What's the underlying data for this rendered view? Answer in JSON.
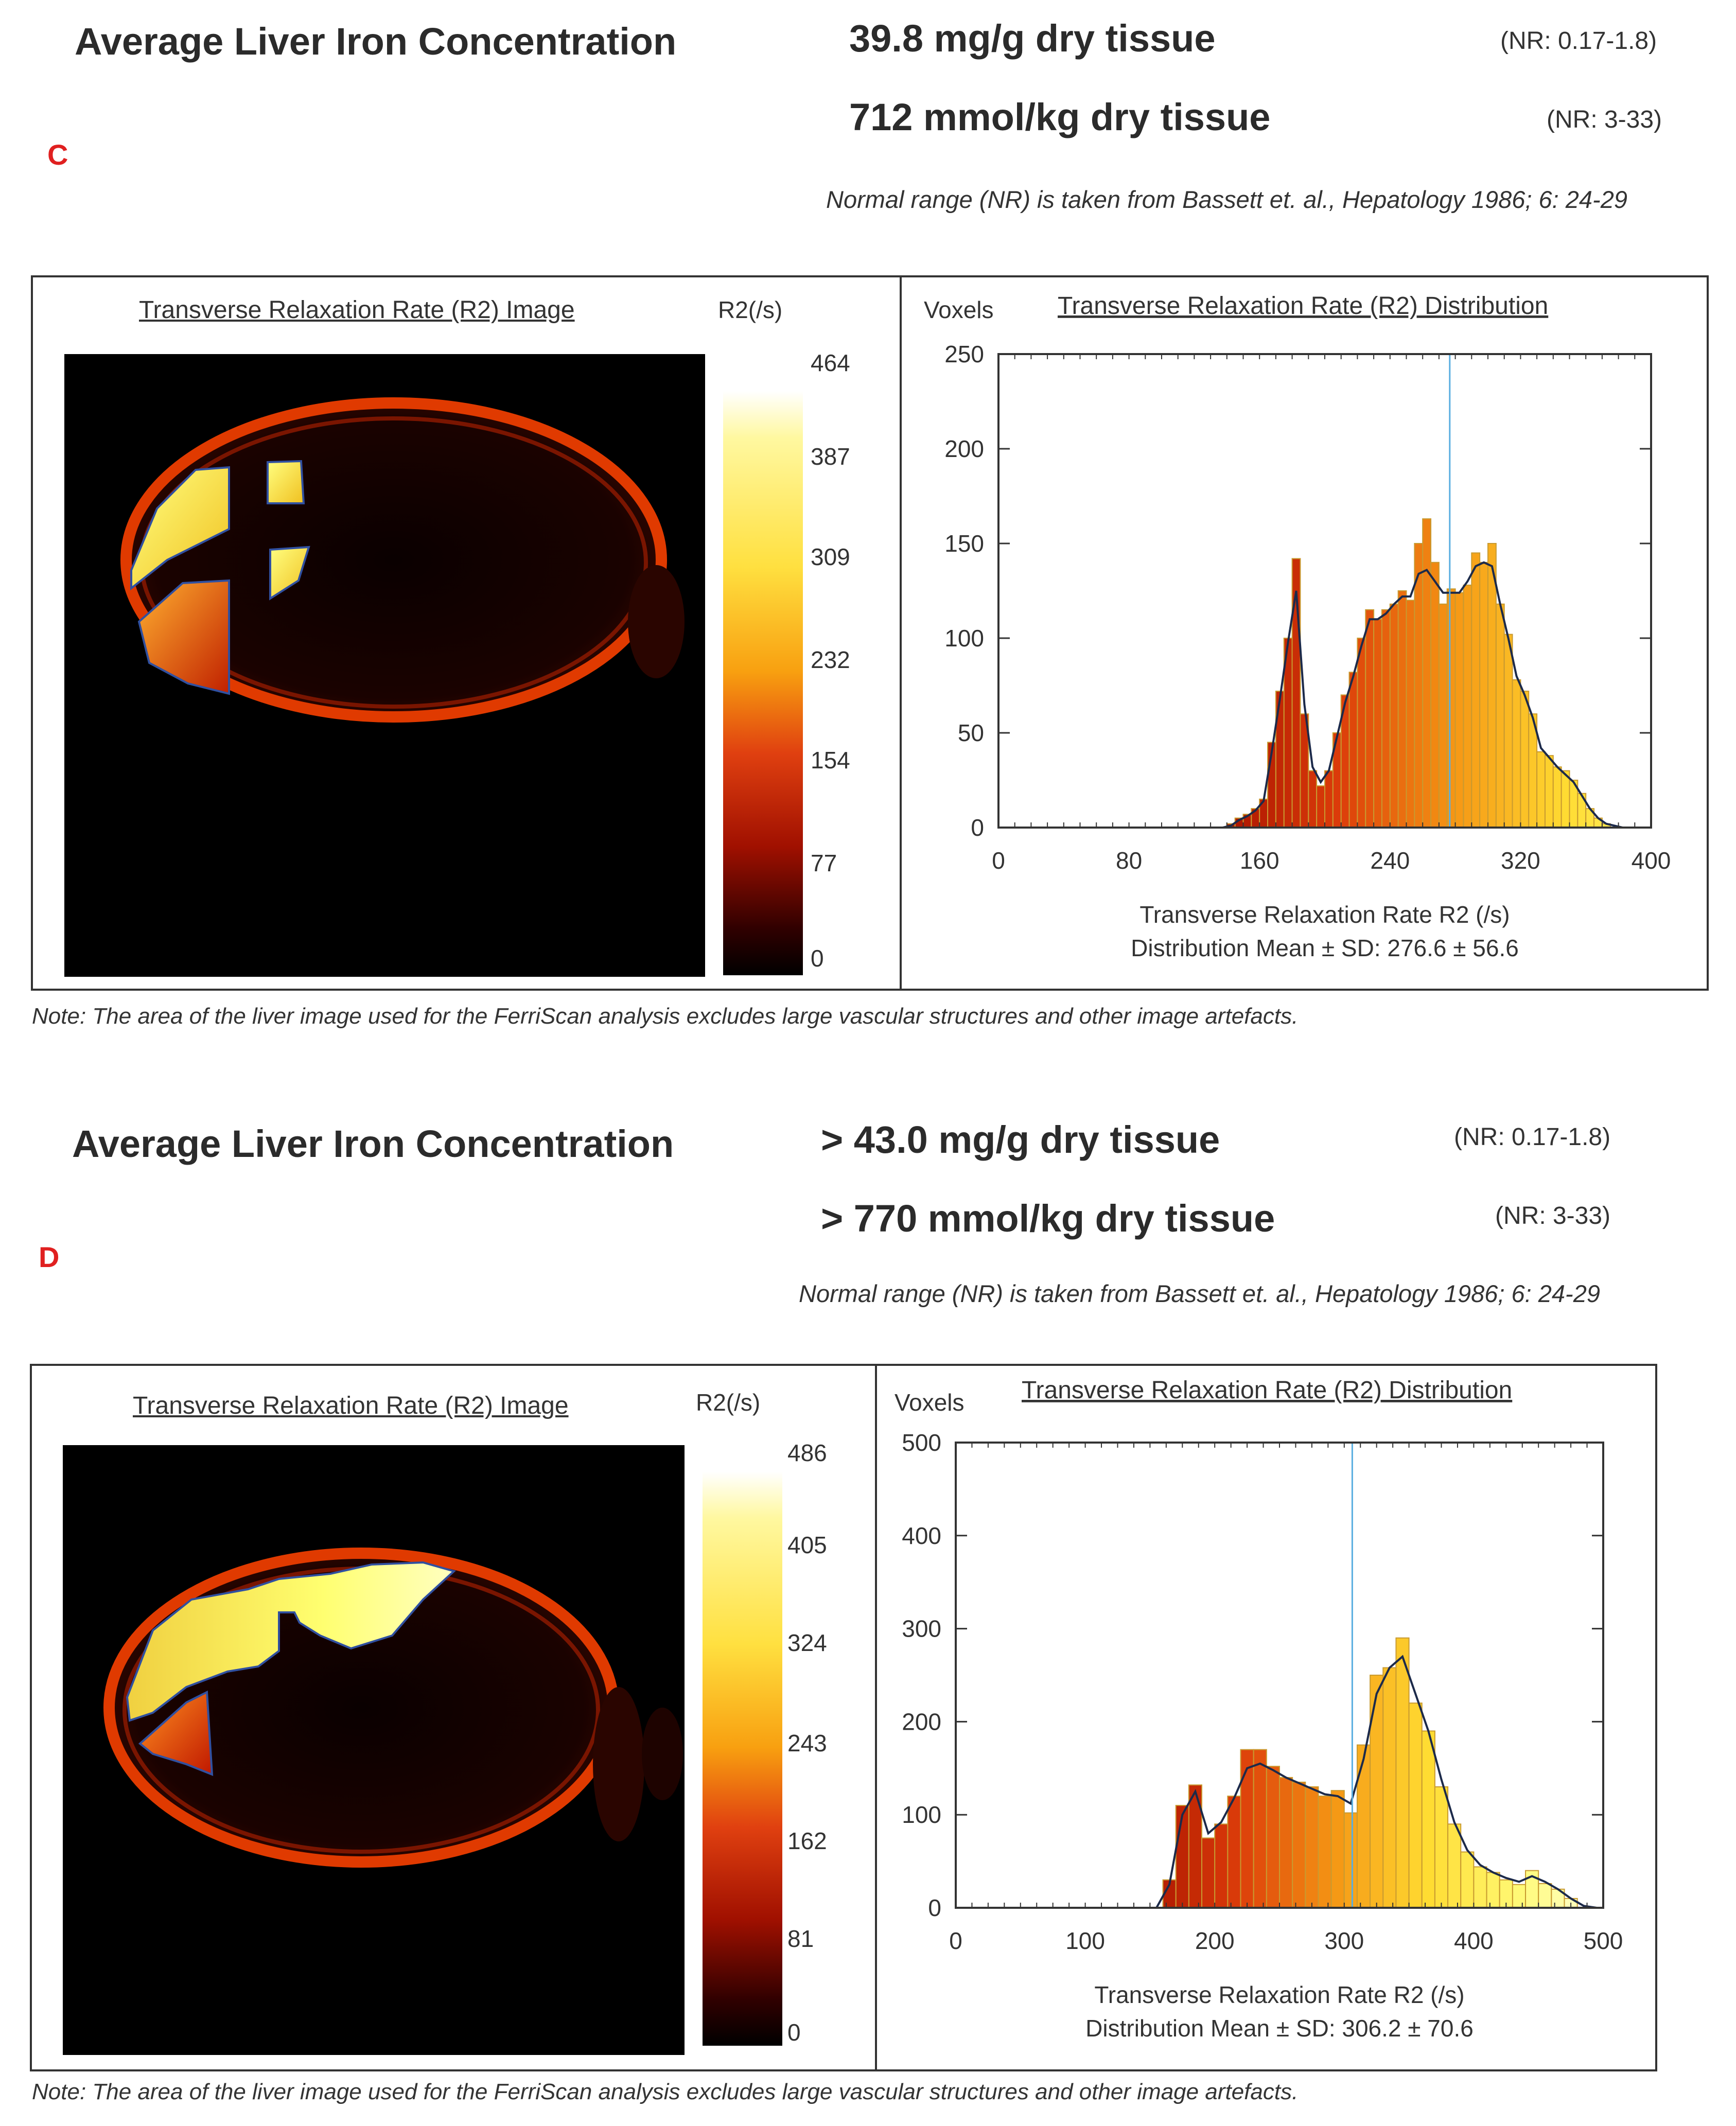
{
  "reports": [
    {
      "letter": "C",
      "title": "Average Liver Iron Concentration",
      "value1": "39.8   mg/g dry tissue",
      "nr1": "(NR: 0.17-1.8)",
      "value2": "712   mmol/kg dry tissue",
      "nr2": "(NR: 3-33)",
      "reference": "Normal range (NR) is taken from Bassett et. al., Hepatology 1986; 6: 24-29",
      "image_title": "Transverse Relaxation Rate (R2) Image",
      "colorbar_label": "R2(/s)",
      "colorbar_ticks": [
        "464",
        "387",
        "309",
        "232",
        "154",
        "77",
        "0"
      ],
      "voxels_label": "Voxels",
      "note": "Note: The area of the liver image used for the FerriScan analysis excludes large vascular structures and other image artefacts."
    },
    {
      "letter": "D",
      "title": "Average Liver Iron Concentration",
      "value1": "> 43.0 mg/g dry tissue",
      "nr1": "(NR: 0.17-1.8)",
      "value2": "> 770 mmol/kg dry tissue",
      "nr2": "(NR: 3-33)",
      "reference": "Normal range (NR) is taken from Bassett et. al., Hepatology 1986; 6: 24-29",
      "image_title": "Transverse Relaxation Rate (R2) Image",
      "colorbar_label": "R2(/s)",
      "colorbar_ticks": [
        "486",
        "405",
        "324",
        "243",
        "162",
        "81",
        "0"
      ],
      "voxels_label": "Voxels",
      "note": "Note: The area of the liver image used for the FerriScan analysis excludes large vascular structures and other image artefacts."
    }
  ],
  "chart_data": [
    {
      "type": "bar",
      "title": "Transverse Relaxation Rate (R2) Distribution",
      "xlabel": "Transverse Relaxation Rate R2 (/s)",
      "ylabel": "Voxels",
      "summary": "Distribution Mean ± SD: 276.6 ± 56.6",
      "xlim": [
        0,
        400
      ],
      "ylim": [
        0,
        250
      ],
      "xticks": [
        0,
        80,
        160,
        240,
        320,
        400
      ],
      "yticks": [
        0,
        50,
        100,
        150,
        200,
        250
      ],
      "mean_line": 276.6,
      "bin_width": 5,
      "bins_start": [
        0,
        5,
        10,
        15,
        20,
        25,
        30,
        35,
        40,
        45,
        50,
        55,
        60,
        65,
        70,
        75,
        80,
        85,
        90,
        95,
        100,
        105,
        110,
        115,
        120,
        125,
        130,
        135,
        140,
        145,
        150,
        155,
        160,
        165,
        170,
        175,
        180,
        185,
        190,
        195,
        200,
        205,
        210,
        215,
        220,
        225,
        230,
        235,
        240,
        245,
        250,
        255,
        260,
        265,
        270,
        275,
        280,
        285,
        290,
        295,
        300,
        305,
        310,
        315,
        320,
        325,
        330,
        335,
        340,
        345,
        350,
        355,
        360,
        365,
        370,
        375,
        380,
        385,
        390,
        395
      ],
      "values": [
        0,
        0,
        0,
        0,
        0,
        0,
        0,
        0,
        0,
        0,
        0,
        0,
        0,
        0,
        0,
        0,
        0,
        0,
        0,
        0,
        0,
        0,
        0,
        0,
        0,
        0,
        0,
        0,
        2,
        5,
        7,
        10,
        15,
        45,
        72,
        100,
        142,
        60,
        30,
        22,
        30,
        50,
        70,
        82,
        100,
        115,
        110,
        115,
        118,
        125,
        120,
        150,
        163,
        140,
        118,
        126,
        124,
        128,
        145,
        140,
        150,
        118,
        102,
        78,
        72,
        60,
        40,
        38,
        32,
        30,
        25,
        18,
        10,
        5,
        2,
        0,
        0,
        0,
        0,
        0
      ],
      "smooth": [
        0,
        0,
        0,
        0,
        0,
        0,
        0,
        0,
        0,
        0,
        0,
        0,
        0,
        0,
        0,
        0,
        0,
        0,
        0,
        0,
        0,
        0,
        0,
        0,
        0,
        0,
        0,
        0,
        1,
        4,
        6,
        9,
        14,
        40,
        68,
        98,
        125,
        65,
        32,
        24,
        30,
        48,
        66,
        80,
        96,
        110,
        110,
        113,
        118,
        122,
        122,
        134,
        136,
        130,
        124,
        124,
        124,
        130,
        138,
        140,
        138,
        118,
        100,
        80,
        70,
        58,
        42,
        37,
        32,
        28,
        24,
        17,
        10,
        5,
        2,
        1,
        0,
        0,
        0,
        0
      ]
    },
    {
      "type": "bar",
      "title": "Transverse Relaxation Rate (R2) Distribution",
      "xlabel": "Transverse Relaxation Rate R2 (/s)",
      "ylabel": "Voxels",
      "summary": "Distribution Mean ± SD: 306.2 ± 70.6",
      "xlim": [
        0,
        500
      ],
      "ylim": [
        0,
        500
      ],
      "xticks": [
        0,
        100,
        200,
        300,
        400,
        500
      ],
      "yticks": [
        0,
        100,
        200,
        300,
        400,
        500
      ],
      "mean_line": 306.2,
      "bin_width": 10,
      "bins_start": [
        0,
        10,
        20,
        30,
        40,
        50,
        60,
        70,
        80,
        90,
        100,
        110,
        120,
        130,
        140,
        150,
        160,
        170,
        180,
        190,
        200,
        210,
        220,
        230,
        240,
        250,
        260,
        270,
        280,
        290,
        300,
        310,
        320,
        330,
        340,
        350,
        360,
        370,
        380,
        390,
        400,
        410,
        420,
        430,
        440,
        450,
        460,
        470,
        480,
        490
      ],
      "values": [
        0,
        0,
        0,
        0,
        0,
        0,
        0,
        0,
        0,
        0,
        0,
        0,
        0,
        0,
        0,
        0,
        30,
        110,
        132,
        75,
        90,
        120,
        170,
        170,
        152,
        140,
        135,
        130,
        120,
        126,
        102,
        175,
        250,
        258,
        290,
        220,
        190,
        130,
        90,
        60,
        44,
        38,
        30,
        25,
        40,
        26,
        20,
        10,
        0,
        0
      ],
      "smooth": [
        0,
        0,
        0,
        0,
        0,
        0,
        0,
        0,
        0,
        0,
        0,
        0,
        0,
        0,
        0,
        0,
        25,
        100,
        125,
        80,
        92,
        118,
        150,
        155,
        148,
        140,
        134,
        128,
        122,
        120,
        112,
        160,
        230,
        258,
        270,
        230,
        190,
        138,
        92,
        62,
        46,
        38,
        32,
        28,
        34,
        28,
        20,
        10,
        2,
        0
      ]
    }
  ]
}
